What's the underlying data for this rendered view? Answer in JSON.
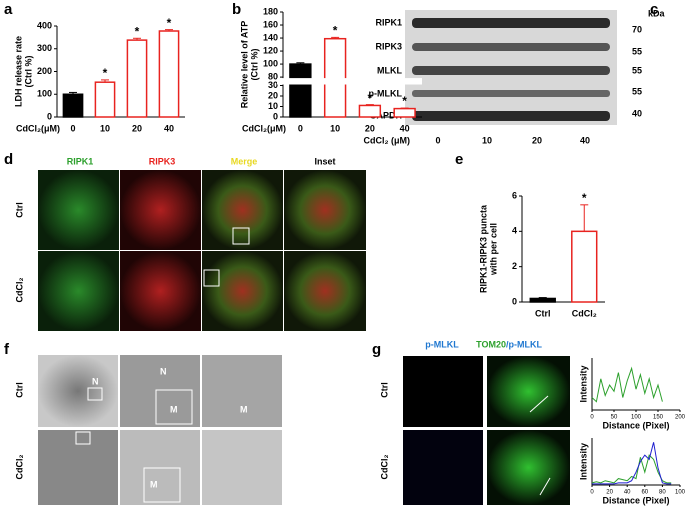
{
  "panel_letters": [
    "a",
    "b",
    "c",
    "d",
    "e",
    "f",
    "g"
  ],
  "chart_data": [
    {
      "type": "bar",
      "ylabel": "LDH release rate",
      "ylabel2": "(Ctrl %)",
      "xlabel": "CdCl₂(μM)",
      "categories": [
        "0",
        "10",
        "20",
        "40"
      ],
      "values": [
        100,
        153,
        338,
        378
      ],
      "errors": [
        8,
        10,
        8,
        6
      ],
      "bar_fills": [
        "#000000",
        "#ffffff",
        "#ffffff",
        "#ffffff"
      ],
      "bar_strokes": [
        "#000000",
        "#e8231f",
        "#e8231f",
        "#e8231f"
      ],
      "star_labels": [
        null,
        "*",
        "*",
        "*"
      ],
      "ylim": [
        0,
        400
      ],
      "yticks": [
        0,
        100,
        200,
        300,
        400
      ]
    },
    {
      "type": "bar",
      "ylabel": "Relative level of ATP",
      "ylabel2": "(Ctrl %)",
      "xlabel": "CdCl₂(μM)",
      "categories": [
        "0",
        "10",
        "20",
        "40"
      ],
      "values": [
        100,
        139,
        11,
        8
      ],
      "errors": [
        2,
        2,
        0.8,
        0.5
      ],
      "bar_fills": [
        "#000000",
        "#ffffff",
        "#ffffff",
        "#ffffff"
      ],
      "bar_strokes": [
        "#000000",
        "#e8231f",
        "#e8231f",
        "#e8231f"
      ],
      "star_labels": [
        null,
        "*",
        "*",
        "*"
      ],
      "ylim": [
        0,
        180
      ],
      "axis_break": [
        30,
        80
      ],
      "yticks": [
        0,
        10,
        20,
        30,
        80,
        100,
        120,
        140,
        160,
        180
      ]
    },
    {
      "type": "bar",
      "ylabel": "RIPK1-RIPK3 puncta",
      "ylabel2": "with per cell",
      "categories": [
        "Ctrl",
        "CdCl₂"
      ],
      "values": [
        0.2,
        4.0
      ],
      "errors": [
        0.05,
        1.5
      ],
      "bar_fills": [
        "#000000",
        "#ffffff"
      ],
      "bar_strokes": [
        "#000000",
        "#e8231f"
      ],
      "star_labels": [
        null,
        "*"
      ],
      "ylim": [
        0,
        6
      ],
      "yticks": [
        0,
        2,
        4,
        6
      ]
    },
    {
      "type": "line",
      "xlabel": "Distance (Pixel)",
      "ylabel": "Intensity",
      "x": [
        0,
        10,
        20,
        30,
        40,
        50,
        60,
        70,
        80,
        90,
        100,
        110,
        120,
        130,
        140,
        150,
        160
      ],
      "series": [
        {
          "color": "#2ca02c",
          "values": [
            60,
            40,
            150,
            70,
            120,
            90,
            180,
            60,
            140,
            200,
            100,
            170,
            80,
            150,
            60,
            120,
            40
          ]
        }
      ],
      "xlim": [
        0,
        200
      ],
      "xticks": [
        0,
        50,
        100,
        150,
        200
      ],
      "ylim": [
        0,
        250
      ]
    },
    {
      "type": "line",
      "xlabel": "Distance (Pixel)",
      "ylabel": "Intensity",
      "x": [
        0,
        5,
        10,
        15,
        20,
        25,
        30,
        35,
        40,
        45,
        50,
        55,
        60,
        65,
        70,
        75,
        80,
        85,
        90
      ],
      "series": [
        {
          "color": "#2ca02c",
          "values": [
            10,
            15,
            10,
            20,
            15,
            10,
            30,
            25,
            20,
            40,
            30,
            130,
            60,
            140,
            120,
            60,
            20,
            10,
            10
          ]
        },
        {
          "color": "#1f1fd0",
          "values": [
            5,
            5,
            5,
            5,
            5,
            5,
            10,
            10,
            10,
            20,
            60,
            110,
            140,
            120,
            200,
            80,
            10,
            5,
            5
          ]
        }
      ],
      "xlim": [
        0,
        100
      ],
      "xticks": [
        0,
        20,
        40,
        60,
        80,
        100
      ],
      "ylim": [
        0,
        220
      ]
    }
  ],
  "blot": {
    "proteins": [
      "RIPK1",
      "RIPK3",
      "MLKL",
      "p-MLKL",
      "GAPDH"
    ],
    "kda_header": "kDa",
    "kda": [
      "70",
      "55",
      "55",
      "55",
      "40"
    ],
    "xlabel": "CdCl₂ (μM)",
    "lanes": [
      "0",
      "10",
      "20",
      "40"
    ]
  },
  "panel_d": {
    "columns": [
      "RIPK1",
      "RIPK3",
      "Merge",
      "Inset"
    ],
    "rows": [
      "Ctrl",
      "CdCl₂"
    ]
  },
  "panel_f": {
    "rows": [
      "Ctrl",
      "CdCl₂"
    ],
    "markers": [
      "N",
      "M"
    ]
  },
  "panel_g": {
    "columns": [
      "p-MLKL",
      "TOM20",
      "/p-MLKL"
    ],
    "rows": [
      "Ctrl",
      "CdCl₂"
    ]
  }
}
